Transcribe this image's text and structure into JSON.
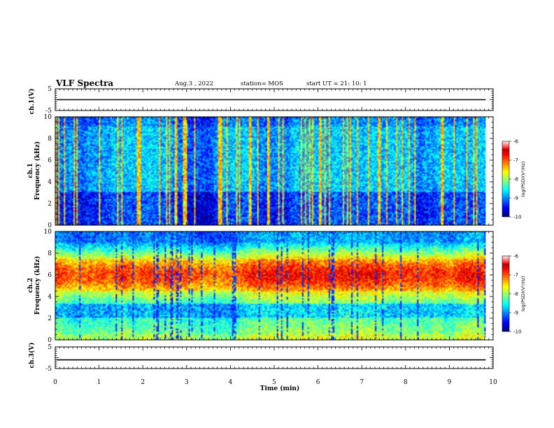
{
  "header": {
    "title": "VLF  Spectra",
    "date": "Aug.3  , 2022",
    "station": "station= MOS",
    "start": "start  UT  =   21: 10: 1"
  },
  "colors": {
    "spectrum_low": "#000060",
    "spectrum_mid": "#00e0a0",
    "spectrum_high": "#ff0000",
    "line": "#000000"
  },
  "chart_data": [
    {
      "type": "line",
      "name_label": "ch.1(V)",
      "ylim": [
        -5,
        5
      ],
      "y_ticks": [
        "5",
        "-5"
      ],
      "level": 0,
      "xlim": [
        0,
        10
      ]
    },
    {
      "type": "heatmap",
      "ylabel_line1": "ch.1",
      "ylabel_line2": "Frequency  (kHz)",
      "ylim": [
        0,
        10
      ],
      "y_ticks": [
        "0",
        "2",
        "4",
        "6",
        "8",
        "10"
      ],
      "xlim": [
        0,
        10
      ],
      "data_end_min": 9.83,
      "colorbar": {
        "label": "log(PSD)(V²/Hz)",
        "ticks": [
          "-6",
          "-7",
          "-8",
          "-9",
          "-10"
        ],
        "range": [
          -10,
          -6
        ]
      },
      "description": "ch1"
    },
    {
      "type": "heatmap",
      "ylabel_line1": "ch.2",
      "ylabel_line2": "Frequency  (kHz)",
      "ylim": [
        0,
        10
      ],
      "y_ticks": [
        "0",
        "2",
        "4",
        "6",
        "8",
        "10"
      ],
      "xlim": [
        0,
        10
      ],
      "data_end_min": 9.83,
      "colorbar": {
        "label": "log(PSD)(V²/Hz)",
        "ticks": [
          "-6",
          "-7",
          "-8",
          "-9",
          "-10"
        ],
        "range": [
          -10,
          -6
        ]
      },
      "description": "ch2"
    },
    {
      "type": "line",
      "name_label": "ch.3(V)",
      "ylim": [
        -5,
        5
      ],
      "y_ticks": [
        "5",
        "-5"
      ],
      "level": -1,
      "xlim": [
        0,
        10
      ]
    }
  ],
  "xaxis": {
    "label": "Time  (min)",
    "ticks": [
      "0",
      "1",
      "2",
      "3",
      "4",
      "5",
      "6",
      "7",
      "8",
      "9",
      "10"
    ]
  }
}
